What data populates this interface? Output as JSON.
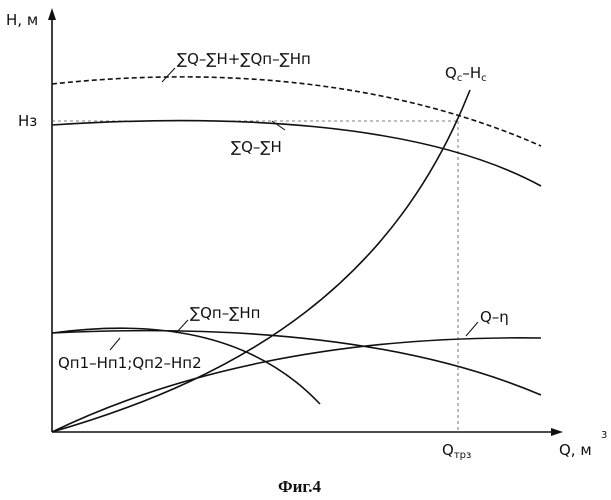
{
  "axes": {
    "y_label": "H, м",
    "x_label_main": "Q, м",
    "x_label_exp": "3",
    "h3_label": "Hз",
    "qtr3_main": "Q",
    "qtr3_sub": "трз"
  },
  "curve_labels": {
    "total_dashed": "∑Q–∑H+∑Qп–∑Hп",
    "total": "∑Q–∑H",
    "network_main": "Q",
    "network_sub1": "c",
    "network_mid": "–H",
    "network_sub2": "c",
    "pump_sum": "∑Qп–∑Hп",
    "efficiency": "Q–η",
    "individual": "Qп1–Hп1;Qп2–Hп2"
  },
  "caption": "Фиг.4"
}
